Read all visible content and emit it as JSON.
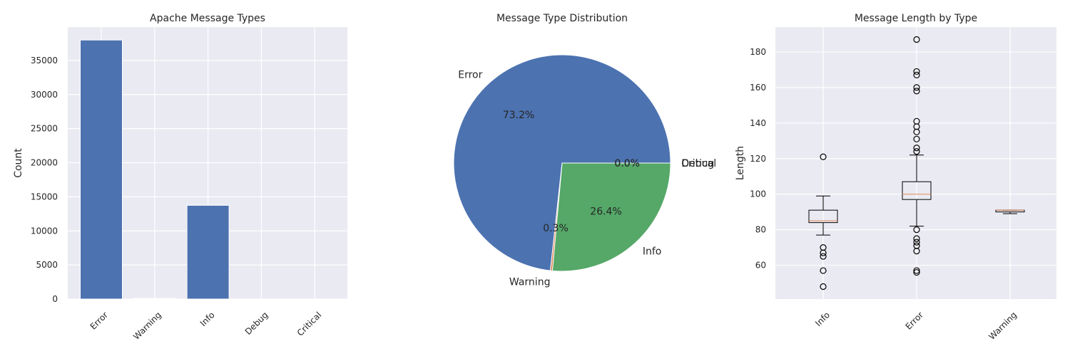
{
  "chart_data": [
    {
      "type": "bar",
      "title": "Apache Message Types",
      "xlabel": "",
      "ylabel": "Count",
      "categories": [
        "Error",
        "Warning",
        "Info",
        "Debug",
        "Critical"
      ],
      "values": [
        38000,
        100,
        13750,
        0,
        0
      ],
      "ylim": [
        0,
        39900
      ],
      "yticks": [
        0,
        5000,
        10000,
        15000,
        20000,
        25000,
        30000,
        35000
      ],
      "grid": true,
      "color": "#4c72b0"
    },
    {
      "type": "pie",
      "title": "Message Type Distribution",
      "labels": [
        "Error",
        "Warning",
        "Info",
        "Debug",
        "Critical"
      ],
      "values": [
        73.2,
        0.3,
        26.4,
        0.0,
        0.0
      ],
      "pct_labels": [
        "73.2%",
        "0.3%",
        "26.4%",
        "0.0%",
        "0.0%"
      ],
      "colors": [
        "#4c72b0",
        "#dd8452",
        "#55a868",
        "#c44e52",
        "#8172b3"
      ]
    },
    {
      "type": "box",
      "title": "Message Length by Type",
      "xlabel": "",
      "ylabel": "Length",
      "categories": [
        "Info",
        "Error",
        "Warning"
      ],
      "boxes": [
        {
          "whislo": 77,
          "q1": 84,
          "med": 85,
          "q3": 91,
          "whishi": 99,
          "fliers": [
            121,
            70,
            67,
            65,
            57,
            48
          ]
        },
        {
          "whislo": 82,
          "q1": 97,
          "med": 100,
          "q3": 107,
          "whishi": 122,
          "fliers": [
            187,
            169,
            167,
            160,
            158,
            141,
            138,
            135,
            131,
            126,
            124,
            80,
            75,
            73,
            71,
            68,
            57,
            56
          ]
        },
        {
          "whislo": 89,
          "q1": 90,
          "med": 91,
          "q3": 91,
          "whishi": 91,
          "fliers": []
        }
      ],
      "ylim": [
        41,
        194
      ],
      "yticks": [
        60,
        80,
        100,
        120,
        140,
        160,
        180
      ],
      "grid": true
    }
  ]
}
